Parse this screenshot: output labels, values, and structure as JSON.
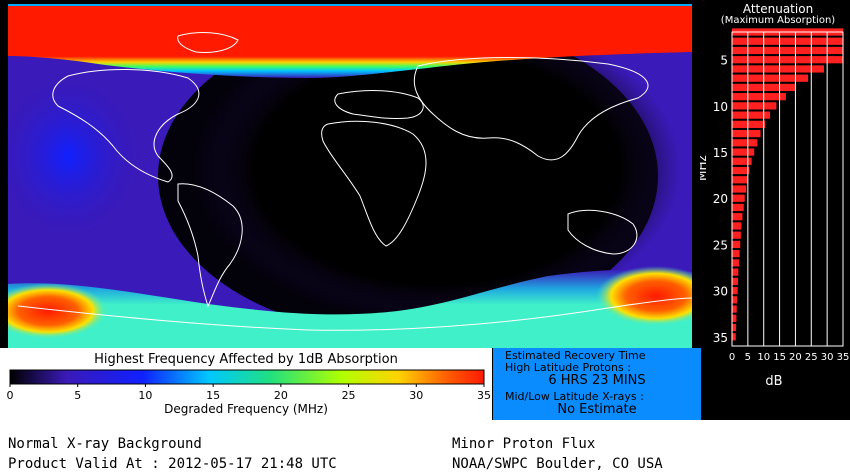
{
  "attenuation": {
    "title": "Attenuation",
    "subtitle": "(Maximum Absorption)",
    "ylabel": "MHz",
    "xlabel": "dB",
    "y_ticks": [
      "5",
      "10",
      "15",
      "20",
      "25",
      "30",
      "35"
    ],
    "x_ticks": [
      "0",
      "5",
      "10",
      "15",
      "20",
      "25",
      "30",
      "35"
    ]
  },
  "legend": {
    "title": "Highest Frequency Affected by 1dB Absorption",
    "xlabel": "Degraded Frequency (MHz)",
    "ticks": [
      "0",
      "5",
      "10",
      "15",
      "20",
      "25",
      "30",
      "35"
    ]
  },
  "recovery": {
    "title": "Estimated Recovery Time",
    "high_lat_label": "High Latitude Protons :",
    "high_lat_value": "6 HRS 23 MINS",
    "mid_lat_label": "Mid/Low Latitude X-rays :",
    "mid_lat_value": "No Estimate"
  },
  "footer": {
    "background": "Normal X-ray Background",
    "valid": "Product Valid At : 2012-05-17 21:48 UTC",
    "proton": "Minor Proton Flux",
    "source": "NOAA/SWPC Boulder, CO USA"
  },
  "colors": {
    "bars": "#ff2020",
    "polar_north": "#ff1a00",
    "polar_south": "#3ff0c8",
    "night_blue": "#3a1ab8",
    "recovery_bg": "#0a8cff"
  },
  "chart_data": {
    "type": "bar",
    "orientation": "horizontal",
    "title": "Attenuation",
    "subtitle": "(Maximum Absorption)",
    "xlabel": "dB",
    "ylabel": "MHz",
    "xlim": [
      0,
      35
    ],
    "ylim": [
      2,
      36
    ],
    "frequencies": [
      2,
      3,
      4,
      5,
      6,
      7,
      8,
      9,
      10,
      11,
      12,
      13,
      14,
      15,
      16,
      17,
      18,
      19,
      20,
      21,
      22,
      23,
      24,
      25,
      26,
      27,
      28,
      29,
      30,
      31,
      32,
      33,
      34,
      35
    ],
    "values": [
      35,
      35,
      35,
      35,
      29,
      24,
      20,
      17,
      14,
      12,
      10.5,
      9,
      8,
      7,
      6.2,
      5.5,
      5,
      4.5,
      4,
      3.7,
      3.3,
      3,
      2.8,
      2.6,
      2.4,
      2.2,
      2,
      1.9,
      1.8,
      1.6,
      1.5,
      1.4,
      1.3,
      1.2
    ]
  }
}
